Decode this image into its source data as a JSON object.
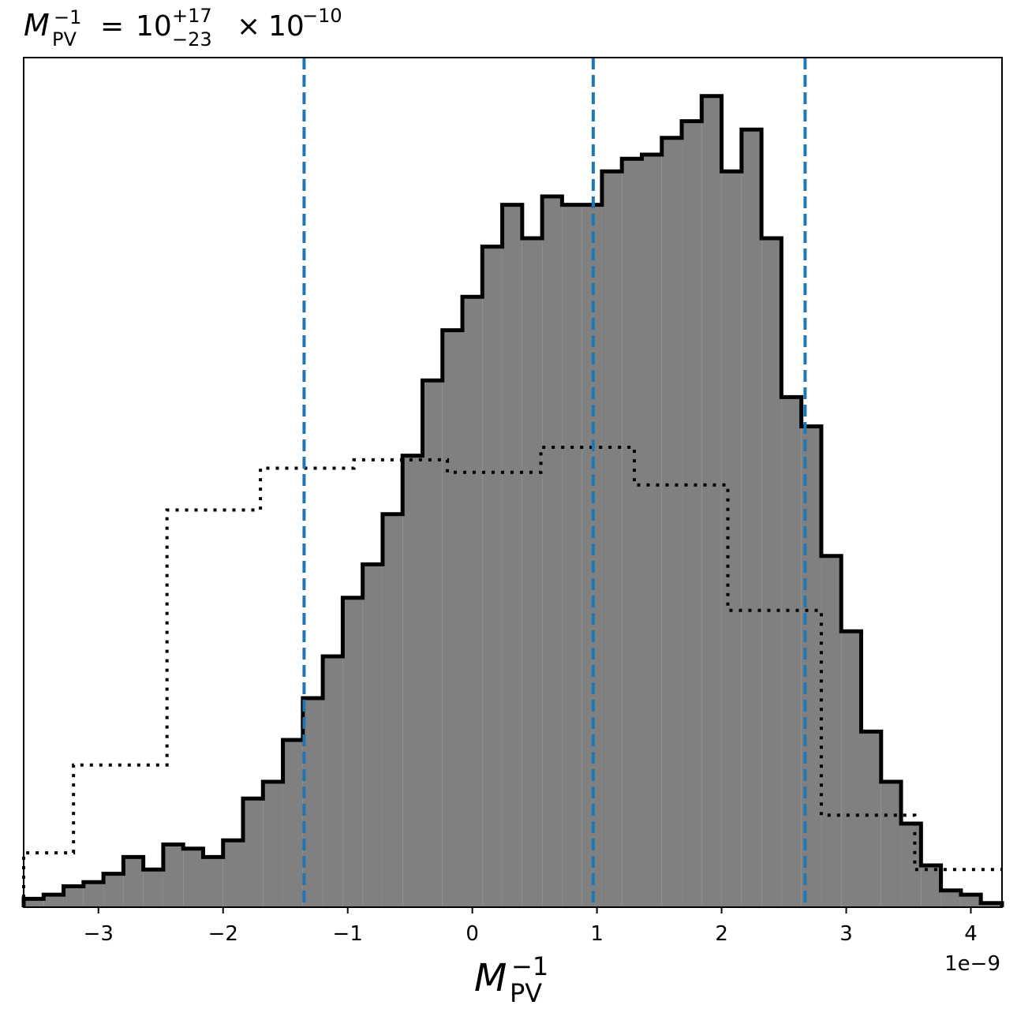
{
  "chart_data": {
    "type": "histogram",
    "title": {
      "lhs_base": "M",
      "lhs_sub": "PV",
      "lhs_sup": "−1",
      "equals": "=",
      "value": "10",
      "plus_err": "+17",
      "minus_err": "−23",
      "times": "×",
      "scale_base": "10",
      "scale_exp": "−10"
    },
    "xlabel": {
      "base": "M",
      "sub": "PV",
      "sup": "−1"
    },
    "x_offset_label": "1e−9",
    "x_unit_scale": 1e-09,
    "xlim": [
      -3.6,
      4.25
    ],
    "ylim": [
      0,
      1.0
    ],
    "xticks": [
      {
        "value": -3,
        "label": "−3"
      },
      {
        "value": -2,
        "label": "−2"
      },
      {
        "value": -1,
        "label": "−1"
      },
      {
        "value": 0,
        "label": "0"
      },
      {
        "value": 1,
        "label": "1"
      },
      {
        "value": 2,
        "label": "2"
      },
      {
        "value": 3,
        "label": "3"
      },
      {
        "value": 4,
        "label": "4"
      }
    ],
    "yticks_shown": false,
    "series": [
      {
        "kind": "posterior",
        "style": "filled-step",
        "fill_color": "#808080",
        "line_color": "#000000",
        "bin_edges": [
          -3.6,
          -3.44,
          -3.28,
          -3.12,
          -2.96,
          -2.8,
          -2.64,
          -2.48,
          -2.32,
          -2.16,
          -2.0,
          -1.84,
          -1.68,
          -1.52,
          -1.36,
          -1.2,
          -1.04,
          -0.88,
          -0.72,
          -0.56,
          -0.4,
          -0.24,
          -0.08,
          0.08,
          0.24,
          0.4,
          0.56,
          0.72,
          0.88,
          1.04,
          1.2,
          1.36,
          1.52,
          1.68,
          1.84,
          2.0,
          2.16,
          2.32,
          2.48,
          2.64,
          2.8,
          2.96,
          3.12,
          3.28,
          3.44,
          3.6,
          3.76,
          3.92,
          4.08,
          4.25
        ],
        "counts": [
          0.01,
          0.015,
          0.025,
          0.03,
          0.04,
          0.06,
          0.045,
          0.075,
          0.07,
          0.06,
          0.08,
          0.13,
          0.15,
          0.2,
          0.25,
          0.3,
          0.37,
          0.41,
          0.47,
          0.54,
          0.63,
          0.69,
          0.73,
          0.79,
          0.84,
          0.8,
          0.85,
          0.84,
          0.84,
          0.88,
          0.895,
          0.9,
          0.92,
          0.94,
          0.97,
          0.88,
          0.93,
          0.8,
          0.61,
          0.575,
          0.42,
          0.33,
          0.21,
          0.15,
          0.1,
          0.05,
          0.02,
          0.015,
          0.005
        ]
      },
      {
        "kind": "prior",
        "style": "dotted-step",
        "line_color": "#000000",
        "bin_edges": [
          -3.6,
          -3.2,
          -2.45,
          -1.7,
          -0.95,
          -0.2,
          0.55,
          1.3,
          2.05,
          2.8,
          3.55,
          4.25
        ],
        "counts": [
          0.065,
          0.17,
          0.475,
          0.525,
          0.535,
          0.52,
          0.55,
          0.505,
          0.355,
          0.11,
          0.045
        ]
      }
    ],
    "vlines": {
      "color": "#1f77b4",
      "style": "dashed",
      "x": [
        -1.35,
        0.97,
        2.67
      ]
    },
    "grid": false,
    "legend": "none"
  }
}
